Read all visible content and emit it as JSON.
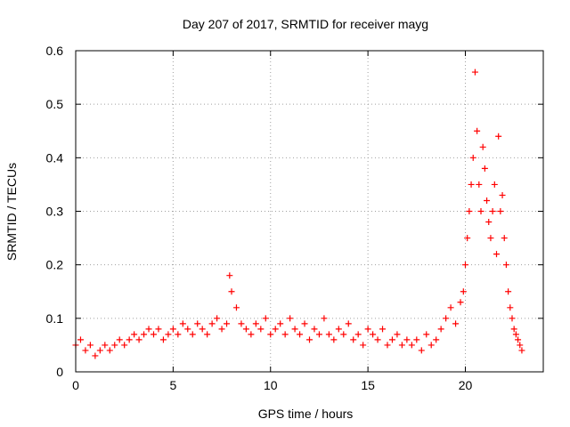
{
  "chart_data": {
    "type": "scatter",
    "title": "Day 207 of 2017, SRMTID for receiver mayg",
    "xlabel": "GPS time / hours",
    "ylabel": "SRMTID / TECUs",
    "xlim": [
      0,
      24
    ],
    "ylim": [
      0,
      0.6
    ],
    "xticks": [
      0,
      5,
      10,
      15,
      20
    ],
    "yticks": [
      0,
      0.1,
      0.2,
      0.3,
      0.4,
      0.5,
      0.6
    ],
    "ytick_labels": [
      "0",
      "0.1",
      "0.2",
      "0.3",
      "0.4",
      "0.5",
      "0.6"
    ],
    "grid": true,
    "marker": "+",
    "color": "#ff0000",
    "series": [
      {
        "name": "mayg",
        "x": [
          0.0,
          0.25,
          0.5,
          0.75,
          1.0,
          1.25,
          1.5,
          1.75,
          2.0,
          2.25,
          2.5,
          2.75,
          3.0,
          3.25,
          3.5,
          3.75,
          4.0,
          4.25,
          4.5,
          4.75,
          5.0,
          5.25,
          5.5,
          5.75,
          6.0,
          6.25,
          6.5,
          6.75,
          7.0,
          7.25,
          7.5,
          7.75,
          7.9,
          8.0,
          8.25,
          8.5,
          8.75,
          9.0,
          9.25,
          9.5,
          9.75,
          10.0,
          10.25,
          10.5,
          10.75,
          11.0,
          11.25,
          11.5,
          11.75,
          12.0,
          12.25,
          12.5,
          12.75,
          13.0,
          13.25,
          13.5,
          13.75,
          14.0,
          14.25,
          14.5,
          14.75,
          15.0,
          15.25,
          15.5,
          15.75,
          16.0,
          16.25,
          16.5,
          16.75,
          17.0,
          17.25,
          17.5,
          17.75,
          18.0,
          18.25,
          18.5,
          18.75,
          19.0,
          19.25,
          19.5,
          19.75,
          19.9,
          20.0,
          20.1,
          20.2,
          20.3,
          20.4,
          20.5,
          20.6,
          20.7,
          20.8,
          20.9,
          21.0,
          21.1,
          21.2,
          21.3,
          21.4,
          21.5,
          21.6,
          21.7,
          21.8,
          21.9,
          22.0,
          22.1,
          22.2,
          22.3,
          22.4,
          22.5,
          22.6,
          22.7,
          22.8,
          22.9
        ],
        "y": [
          0.05,
          0.06,
          0.04,
          0.05,
          0.03,
          0.04,
          0.05,
          0.04,
          0.05,
          0.06,
          0.05,
          0.06,
          0.07,
          0.06,
          0.07,
          0.08,
          0.07,
          0.08,
          0.06,
          0.07,
          0.08,
          0.07,
          0.09,
          0.08,
          0.07,
          0.09,
          0.08,
          0.07,
          0.09,
          0.1,
          0.08,
          0.09,
          0.18,
          0.15,
          0.12,
          0.09,
          0.08,
          0.07,
          0.09,
          0.08,
          0.1,
          0.07,
          0.08,
          0.09,
          0.07,
          0.1,
          0.08,
          0.07,
          0.09,
          0.06,
          0.08,
          0.07,
          0.1,
          0.07,
          0.06,
          0.08,
          0.07,
          0.09,
          0.06,
          0.07,
          0.05,
          0.08,
          0.07,
          0.06,
          0.08,
          0.05,
          0.06,
          0.07,
          0.05,
          0.06,
          0.05,
          0.06,
          0.04,
          0.07,
          0.05,
          0.06,
          0.08,
          0.1,
          0.12,
          0.09,
          0.13,
          0.15,
          0.2,
          0.25,
          0.3,
          0.35,
          0.4,
          0.56,
          0.45,
          0.35,
          0.3,
          0.42,
          0.38,
          0.32,
          0.28,
          0.25,
          0.3,
          0.35,
          0.22,
          0.44,
          0.3,
          0.33,
          0.25,
          0.2,
          0.15,
          0.12,
          0.1,
          0.08,
          0.07,
          0.06,
          0.05,
          0.04
        ]
      }
    ]
  }
}
